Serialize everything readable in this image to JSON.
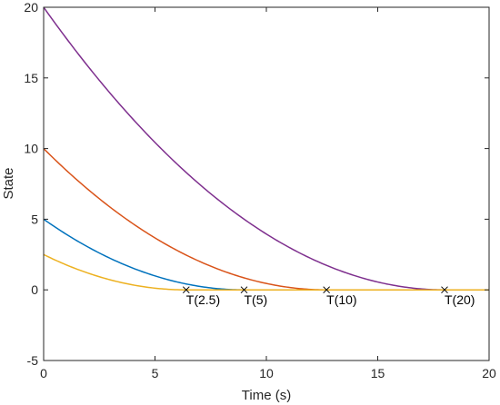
{
  "chart_data": {
    "type": "line",
    "title": "",
    "xlabel": "Time (s)",
    "ylabel": "State",
    "xlim": [
      0,
      20
    ],
    "ylim": [
      -5,
      20
    ],
    "xticks": [
      0,
      5,
      10,
      15,
      20
    ],
    "yticks": [
      -5,
      0,
      5,
      10,
      15,
      20
    ],
    "grid": false,
    "legend": "none",
    "series": [
      {
        "color": "#7E2F8E",
        "x0": 20,
        "T": 18.0
      },
      {
        "color": "#D95319",
        "x0": 10,
        "T": 12.7
      },
      {
        "color": "#0072BD",
        "x0": 5,
        "T": 9.0
      },
      {
        "color": "#EDB120",
        "x0": 2.5,
        "T": 6.4
      }
    ],
    "annotations": [
      {
        "label": "T(2.5)",
        "x": 6.4,
        "y": 0
      },
      {
        "label": "T(5)",
        "x": 9.0,
        "y": 0
      },
      {
        "label": "T(10)",
        "x": 12.7,
        "y": 0
      },
      {
        "label": "T(20)",
        "x": 18.0,
        "y": 0
      }
    ]
  }
}
